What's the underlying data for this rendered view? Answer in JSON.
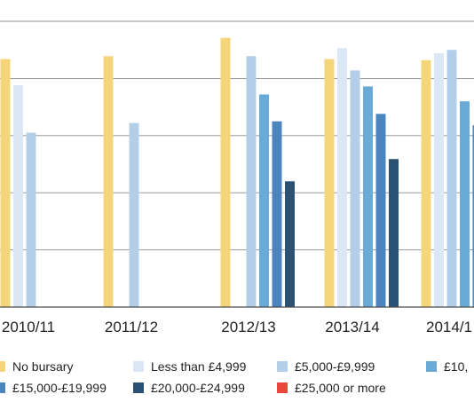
{
  "chart_data": {
    "type": "bar",
    "title": "",
    "xlabel": "",
    "ylabel": "",
    "ylim": [
      0,
      5
    ],
    "grid": true,
    "legend_position": "bottom",
    "categories": [
      "2010/11",
      "2011/12",
      "2012/13",
      "2013/14",
      "2014/1"
    ],
    "series": [
      {
        "name": "No bursary",
        "color": "#f5d57a",
        "values": [
          4.34,
          4.39,
          4.71,
          4.34,
          4.32
        ]
      },
      {
        "name": "Less than £4,999",
        "color": "#dbe7f4",
        "values": [
          3.88,
          null,
          null,
          4.53,
          4.44
        ]
      },
      {
        "name": "£5,000-£9,999",
        "color": "#b3cfe8",
        "values": [
          3.05,
          3.22,
          4.39,
          4.14,
          4.5
        ]
      },
      {
        "name": "£10,",
        "color": "#6aaad8",
        "values": [
          null,
          null,
          3.72,
          3.86,
          3.6
        ]
      },
      {
        "name": "£15,000-£19,999",
        "color": "#4a85bd",
        "values": [
          null,
          null,
          3.25,
          3.38,
          3.18
        ]
      },
      {
        "name": "£20,000-£24,999",
        "color": "#2b5175",
        "values": [
          null,
          null,
          2.2,
          2.59,
          null
        ]
      },
      {
        "name": "£25,000 or more",
        "color": "#e8473a",
        "values": [
          null,
          null,
          null,
          null,
          null
        ]
      }
    ]
  }
}
